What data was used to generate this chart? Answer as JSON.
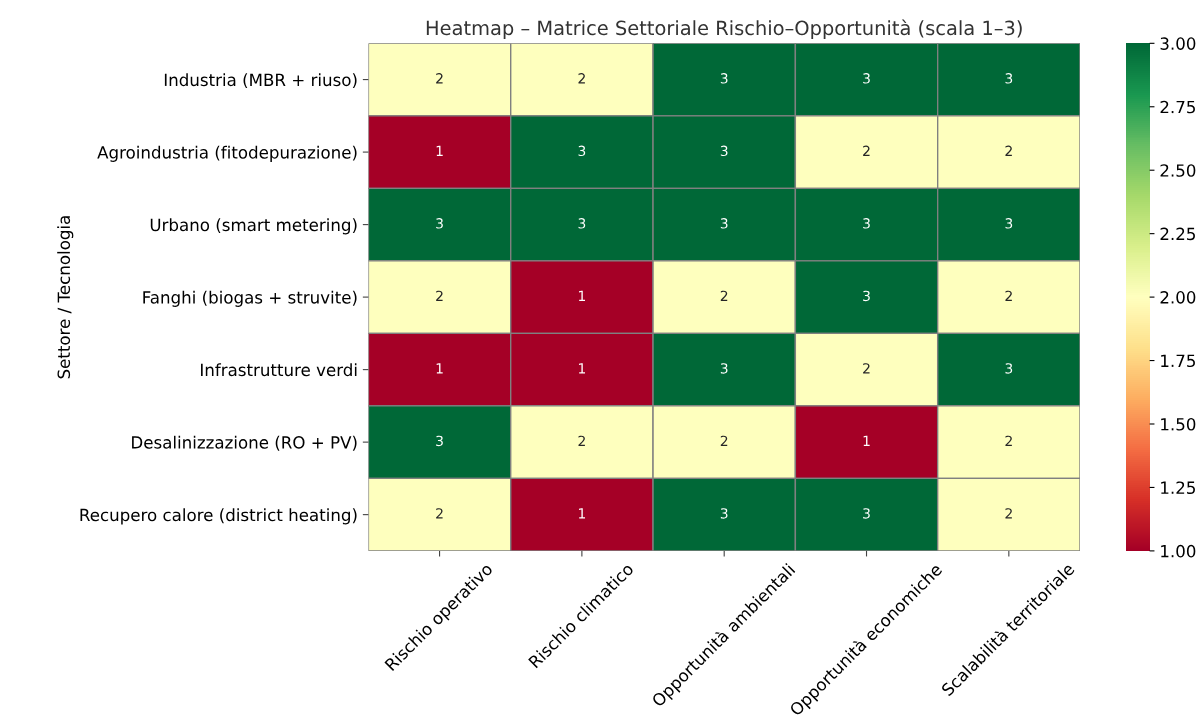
{
  "chart_data": {
    "type": "heatmap",
    "title": "Heatmap – Matrice Settoriale Rischio–Opportunità (scala 1–3)",
    "ylabel": "Settore / Tecnologia",
    "categories": [
      "Rischio operativo",
      "Rischio climatico",
      "Opportunità ambientali",
      "Opportunità economiche",
      "Scalabilità territoriale"
    ],
    "y_categories": [
      "Industria (MBR + riuso)",
      "Agroindustria (fitodepurazione)",
      "Urbano (smart metering)",
      "Fanghi (biogas + struvite)",
      "Infrastrutture verdi",
      "Desalinizzazione (RO + PV)",
      "Recupero calore (district heating)"
    ],
    "cells": [
      [
        2,
        2,
        3,
        3,
        3
      ],
      [
        1,
        3,
        3,
        2,
        2
      ],
      [
        3,
        3,
        3,
        3,
        3
      ],
      [
        2,
        1,
        2,
        3,
        2
      ],
      [
        1,
        1,
        3,
        2,
        3
      ],
      [
        3,
        2,
        2,
        1,
        2
      ],
      [
        2,
        1,
        3,
        3,
        2
      ]
    ],
    "clim": [
      1,
      3
    ],
    "cticks": [
      {
        "value": 1,
        "label": "1.00"
      },
      {
        "value": 1.25,
        "label": "1.25"
      },
      {
        "value": 1.5,
        "label": "1.50"
      },
      {
        "value": 1.75,
        "label": "1.75"
      },
      {
        "value": 2,
        "label": "2.00"
      },
      {
        "value": 2.25,
        "label": "2.25"
      },
      {
        "value": 2.5,
        "label": "2.50"
      },
      {
        "value": 2.75,
        "label": "2.75"
      },
      {
        "value": 3,
        "label": "3.00"
      }
    ],
    "data_labels": true
  }
}
